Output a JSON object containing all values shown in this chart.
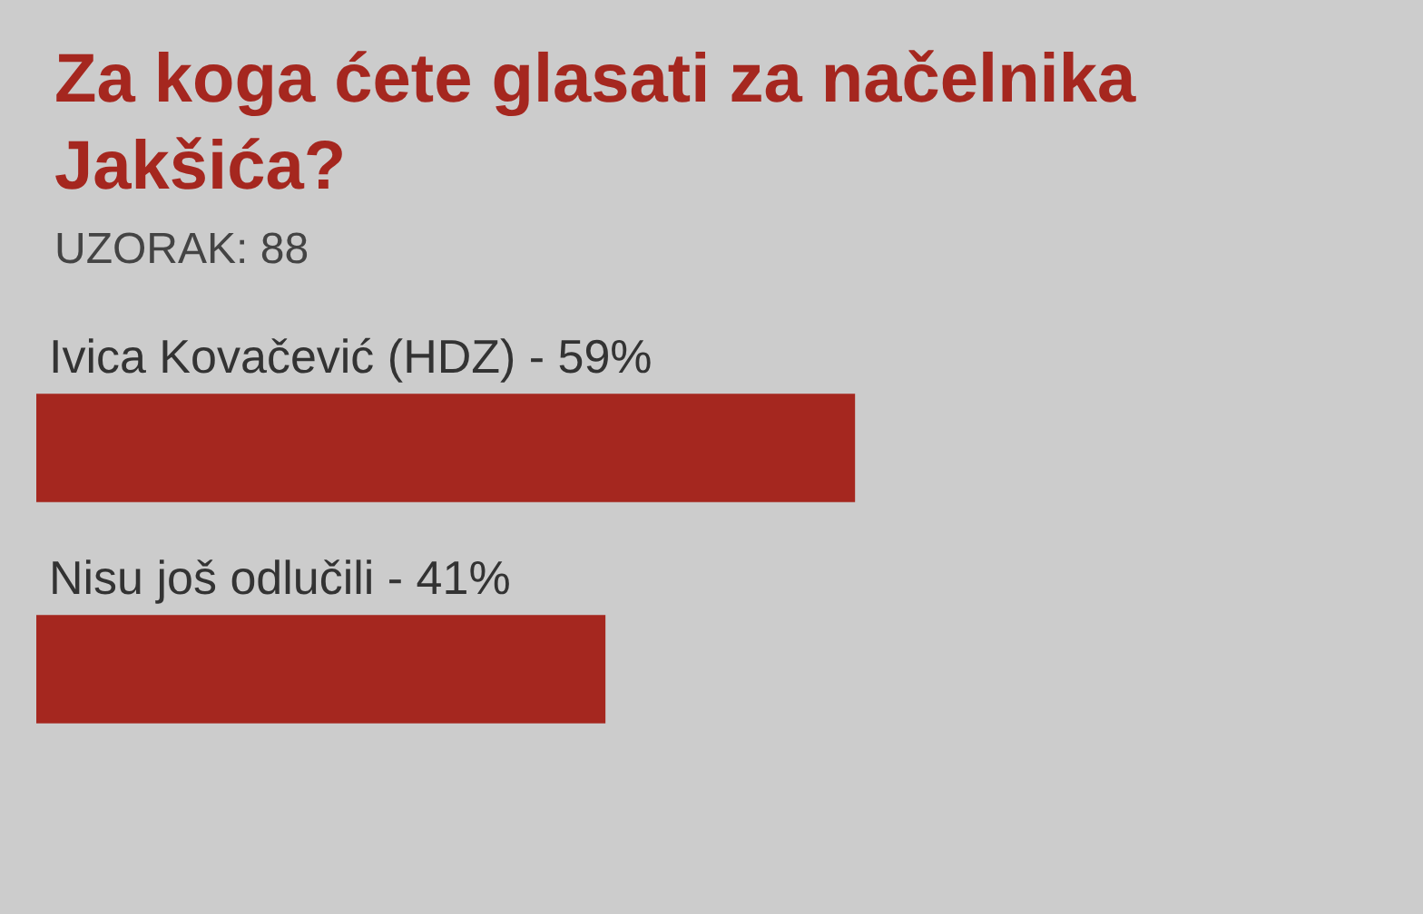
{
  "chart_data": {
    "type": "bar",
    "orientation": "horizontal",
    "title": "Za koga ćete glasati za načelnika Jakšića?",
    "subtitle": "UZORAK: 88",
    "categories": [
      "Ivica Kovačević (HDZ) -",
      "Nisu još odlučili -"
    ],
    "values": [
      59,
      41
    ],
    "value_labels": [
      "59%",
      "41%"
    ],
    "color": "#a5271f",
    "tick_labels": false,
    "legend": false
  }
}
